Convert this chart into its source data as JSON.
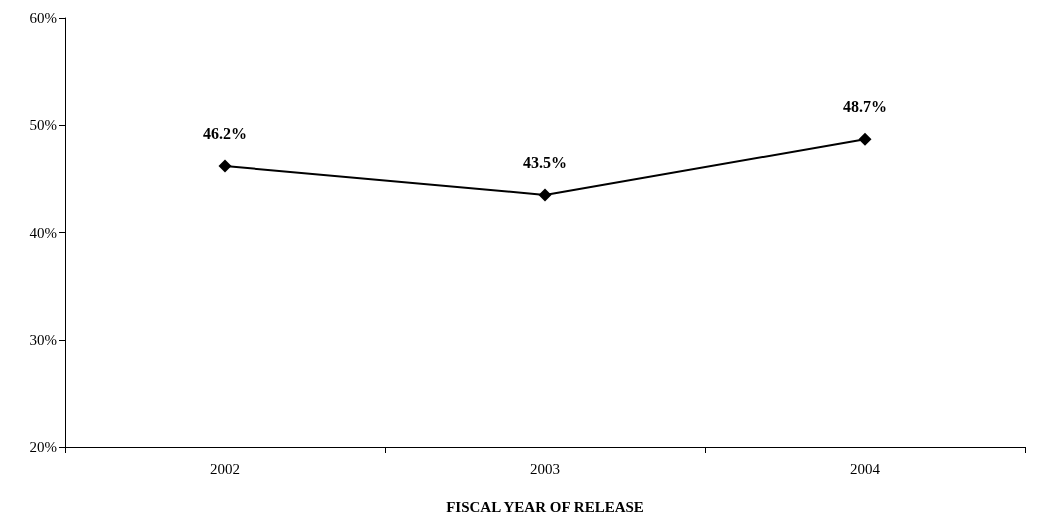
{
  "chart_data": {
    "type": "line",
    "xlabel": "FISCAL YEAR OF RELEASE",
    "categories": [
      "2002",
      "2003",
      "2004"
    ],
    "series": [
      {
        "color": "#000000",
        "values": [
          46.2,
          43.5,
          48.7
        ],
        "value_labels": [
          "46.2%",
          "43.5%",
          "48.7%"
        ]
      }
    ],
    "ylim": [
      20,
      60
    ],
    "yticks": [
      {
        "value": 20,
        "label": "20%"
      },
      {
        "value": 30,
        "label": "30%"
      },
      {
        "value": 40,
        "label": "40%"
      },
      {
        "value": 50,
        "label": "50%"
      },
      {
        "value": 60,
        "label": "60%"
      }
    ],
    "grid": false,
    "marker": "diamond",
    "line_style": "solid"
  }
}
